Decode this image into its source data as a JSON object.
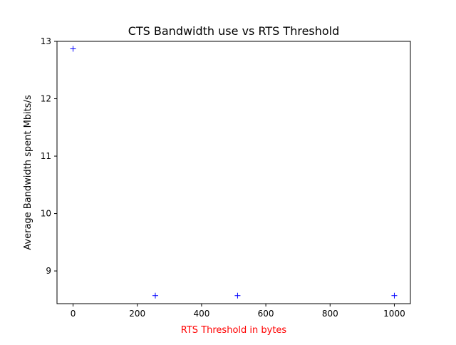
{
  "chart_data": {
    "type": "scatter",
    "title": "CTS Bandwidth use vs RTS Threshold",
    "xlabel": "RTS Threshold in bytes",
    "ylabel": "Average Bandwidth spent Mbits/s",
    "xlim": [
      -50,
      1050
    ],
    "ylim": [
      8.43,
      13.0
    ],
    "xticks": [
      0,
      200,
      400,
      600,
      800,
      1000
    ],
    "yticks": [
      9,
      10,
      11,
      12,
      13
    ],
    "grid": false,
    "marker": "+",
    "colors": {
      "marker": "#0000ff",
      "xlabel": "#ff0000",
      "text": "#000000"
    },
    "series": [
      {
        "x": [
          0,
          256,
          512,
          1000
        ],
        "y": [
          12.87,
          8.57,
          8.57,
          8.57
        ]
      }
    ]
  }
}
